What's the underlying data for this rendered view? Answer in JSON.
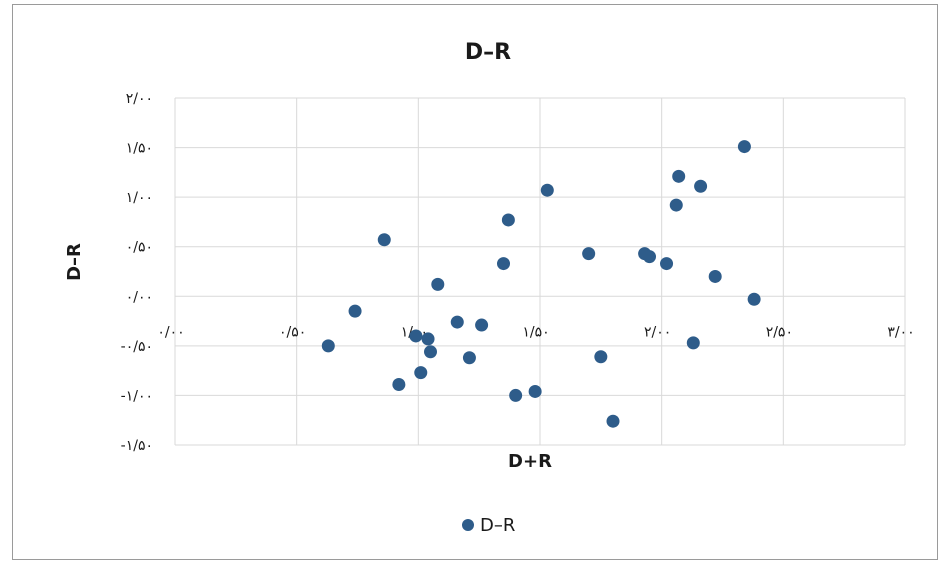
{
  "chart_data": {
    "type": "scatter",
    "title": "D–R",
    "xlabel": "D+R",
    "ylabel": "D–R",
    "xlim": [
      0,
      3
    ],
    "ylim": [
      -1.5,
      2
    ],
    "x_ticks": [
      {
        "value": 0,
        "label": "۰/۰۰"
      },
      {
        "value": 0.5,
        "label": "۰/۵۰"
      },
      {
        "value": 1,
        "label": "۱/۰۰"
      },
      {
        "value": 1.5,
        "label": "۱/۵۰"
      },
      {
        "value": 2,
        "label": "۲/۰۰"
      },
      {
        "value": 2.5,
        "label": "۲/۵۰"
      },
      {
        "value": 3,
        "label": "۳/۰۰"
      }
    ],
    "y_ticks": [
      {
        "value": 2,
        "label": "۲/۰۰"
      },
      {
        "value": 1.5,
        "label": "۱/۵۰"
      },
      {
        "value": 1,
        "label": "۱/۰۰"
      },
      {
        "value": 0.5,
        "label": "۰/۵۰"
      },
      {
        "value": 0,
        "label": "۰/۰۰"
      },
      {
        "value": -0.5,
        "label": "-۰/۵۰"
      },
      {
        "value": -1,
        "label": "-۱/۰۰"
      },
      {
        "value": -1.5,
        "label": "-۱/۵۰"
      }
    ],
    "grid": true,
    "legend": "bottom",
    "series": [
      {
        "name": "D–R",
        "color": "#2e5c8a",
        "points": [
          {
            "x": 0.63,
            "y": -0.5
          },
          {
            "x": 0.74,
            "y": -0.15
          },
          {
            "x": 0.86,
            "y": 0.57
          },
          {
            "x": 0.92,
            "y": -0.89
          },
          {
            "x": 0.99,
            "y": -0.4
          },
          {
            "x": 1.01,
            "y": -0.77
          },
          {
            "x": 1.04,
            "y": -0.43
          },
          {
            "x": 1.05,
            "y": -0.56
          },
          {
            "x": 1.08,
            "y": 0.12
          },
          {
            "x": 1.16,
            "y": -0.26
          },
          {
            "x": 1.21,
            "y": -0.62
          },
          {
            "x": 1.26,
            "y": -0.29
          },
          {
            "x": 1.35,
            "y": 0.33
          },
          {
            "x": 1.37,
            "y": 0.77
          },
          {
            "x": 1.4,
            "y": -1.0
          },
          {
            "x": 1.48,
            "y": -0.96
          },
          {
            "x": 1.53,
            "y": 1.07
          },
          {
            "x": 1.7,
            "y": 0.43
          },
          {
            "x": 1.75,
            "y": -0.61
          },
          {
            "x": 1.8,
            "y": -1.26
          },
          {
            "x": 1.93,
            "y": 0.43
          },
          {
            "x": 1.95,
            "y": 0.4
          },
          {
            "x": 2.02,
            "y": 0.33
          },
          {
            "x": 2.06,
            "y": 0.92
          },
          {
            "x": 2.07,
            "y": 1.21
          },
          {
            "x": 2.13,
            "y": -0.47
          },
          {
            "x": 2.16,
            "y": 1.11
          },
          {
            "x": 2.22,
            "y": 0.2
          },
          {
            "x": 2.34,
            "y": 1.51
          },
          {
            "x": 2.38,
            "y": -0.03
          }
        ]
      }
    ]
  }
}
